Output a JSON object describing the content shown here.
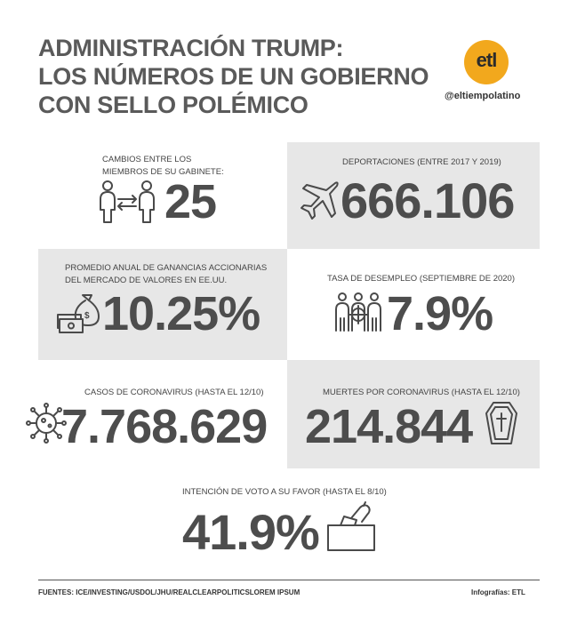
{
  "title": {
    "line1": "ADMINISTRACIÓN TRUMP:",
    "line2": "LOS NÚMEROS DE UN GOBIERNO",
    "line3": "CON SELLO POLÉMICO"
  },
  "brand": {
    "logo_text": "etl",
    "handle": "@eltiempolatino",
    "logo_color": "#f2a81d"
  },
  "panels": {
    "cabinet": {
      "label_line1": "CAMBIOS ENTRE LOS",
      "label_line2": "MIEMBROS DE SU GABINETE:",
      "value": "25",
      "icon": "people-exchange-icon"
    },
    "deportations": {
      "label": "DEPORTACIONES (ENTRE 2017 Y 2019)",
      "value": "666.106",
      "icon": "airplane-icon"
    },
    "stocks": {
      "label_line1": "PROMEDIO ANUAL DE GANANCIAS ACCIONARIAS",
      "label_line2": "DEL MERCADO DE VALORES EN EE.UU.",
      "value": "10.25%",
      "icon": "money-bag-icon"
    },
    "unemployment": {
      "label": "TASA DE DESEMPLEO (SEPTIEMBRE DE 2020)",
      "value": "7.9%",
      "icon": "workers-target-icon"
    },
    "cases": {
      "label": "CASOS DE CORONAVIRUS (HASTA EL 12/10)",
      "value": "7.768.629",
      "icon": "virus-icon"
    },
    "deaths": {
      "label": "MUERTES POR CORONAVIRUS (HASTA EL 12/10)",
      "value": "214.844",
      "icon": "coffin-icon"
    },
    "vote": {
      "label": "INTENCIÓN DE VOTO A SU FAVOR (HASTA EL 8/10)",
      "value": "41.9%",
      "icon": "ballot-box-icon"
    }
  },
  "footer": {
    "sources": "FUENTES: ICE/INVESTING/USDOL/JHU/REALCLEARPOLITICSLOREM IPSUM",
    "credit": "Infografías: ETL"
  },
  "colors": {
    "panel_gray": "#e7e7e7",
    "text_dark": "#4d4d4d"
  }
}
